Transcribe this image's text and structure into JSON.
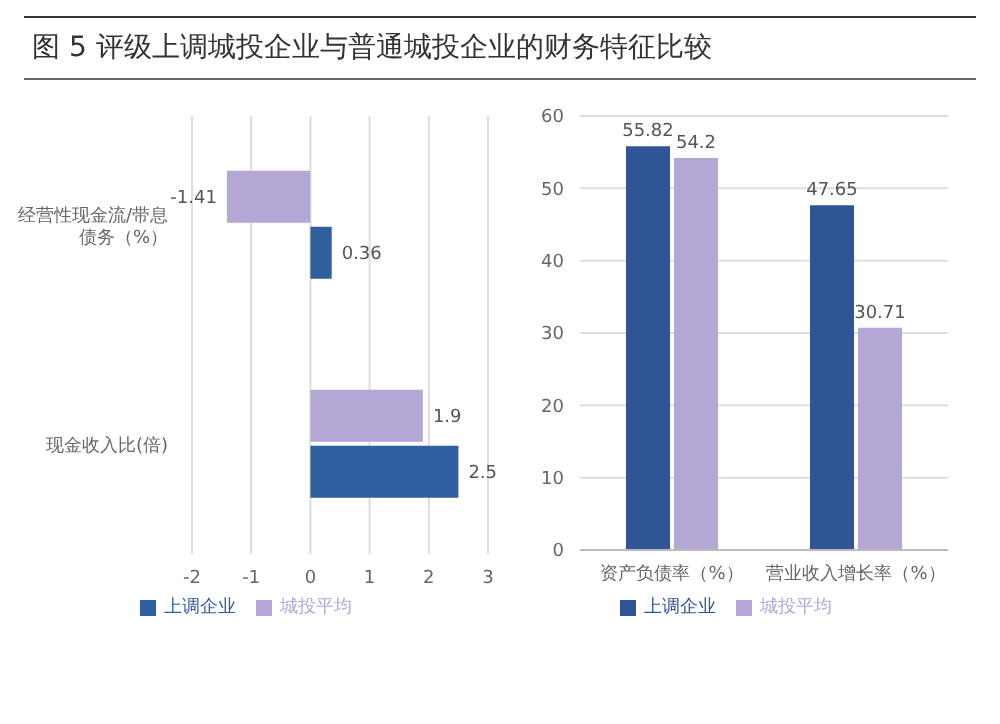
{
  "chart_data": [
    {
      "type": "bar",
      "title": "图 5  评级上调城投企业与普通城投企业的财务特征比较",
      "orientation": "horizontal",
      "categories": [
        "经营性现金流/带息债务（%）",
        "现金收入比(倍)"
      ],
      "series": [
        {
          "name": "城投平均",
          "color": "#b4a7d6",
          "values": [
            -1.41,
            1.9
          ]
        },
        {
          "name": "上调企业",
          "color": "#2f5f9e",
          "values": [
            0.36,
            2.5
          ]
        }
      ],
      "xlim": [
        -2,
        3
      ],
      "xticks": [
        -2,
        -1,
        0,
        1,
        2,
        3
      ],
      "grid": "x",
      "legend": "bottom",
      "data_labels": true
    },
    {
      "type": "bar",
      "categories": [
        "资产负债率（%）",
        "营业收入增长率（%）"
      ],
      "series": [
        {
          "name": "上调企业",
          "color": "#2f5597",
          "values": [
            55.82,
            47.65
          ]
        },
        {
          "name": "城投平均",
          "color": "#b4a7d6",
          "values": [
            54.2,
            30.71
          ]
        }
      ],
      "ylim": [
        0,
        60
      ],
      "yticks": [
        0,
        10,
        20,
        30,
        40,
        50,
        60
      ],
      "grid": "y",
      "legend": "bottom",
      "data_labels": true
    }
  ]
}
